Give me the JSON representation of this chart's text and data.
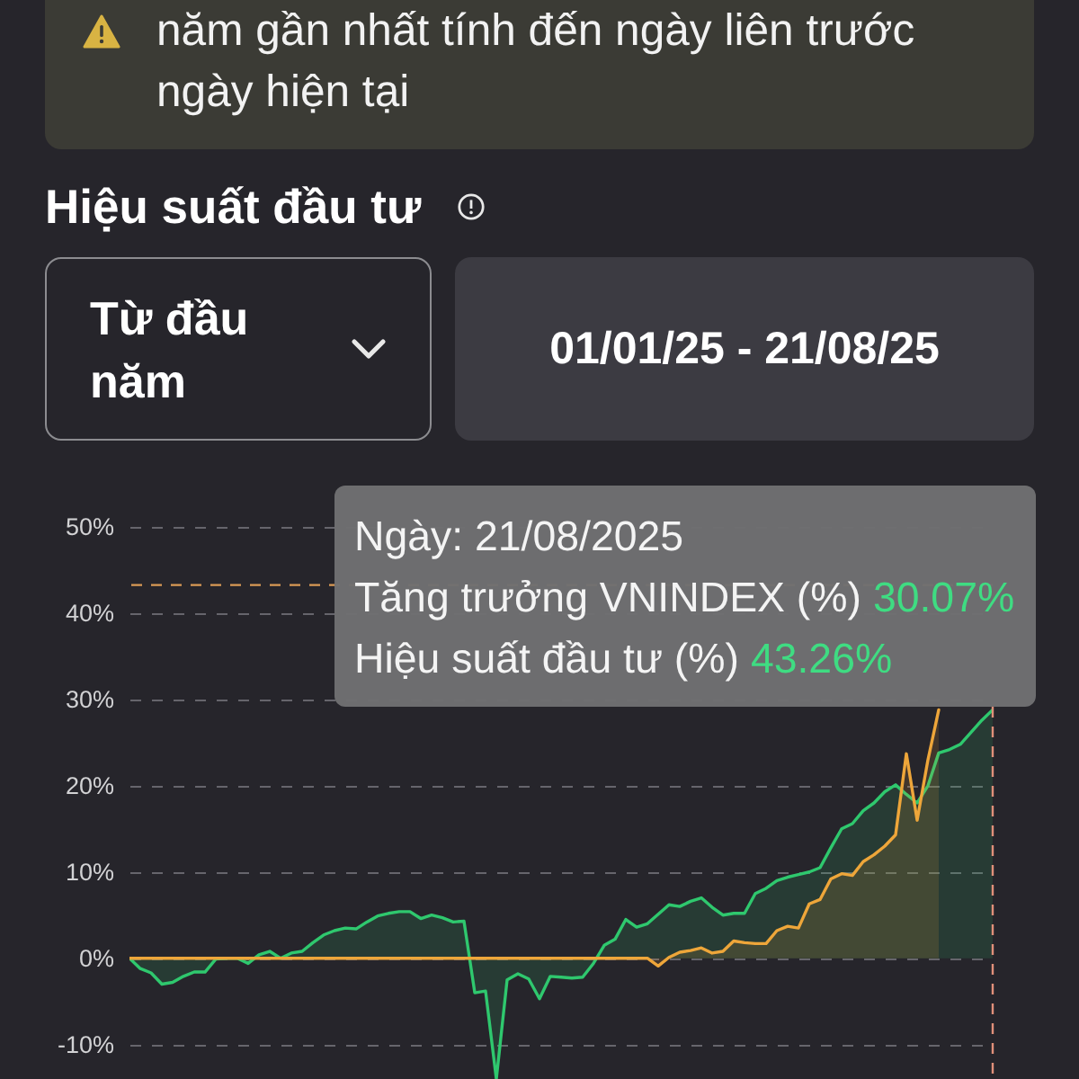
{
  "chart_data": {
    "type": "area",
    "title": "Hiệu suất đầu tư",
    "annotations": [
      "năm gần nhất tính đến ngày liên trước ngày hiện tại",
      "Từ đầu năm",
      "01/01/25 - 21/08/25",
      "Ngày: 21/08/2025",
      "Tăng trưởng VNINDEX (%) 30.07%",
      "Hiệu suất đầu tư (%) 43.26%"
    ],
    "categories": [
      null,
      null,
      null,
      null,
      null,
      null,
      null,
      null,
      null,
      null,
      null,
      null,
      null,
      null,
      null,
      null,
      null,
      null,
      null,
      null,
      null,
      null,
      null,
      null,
      null,
      null,
      null,
      null,
      null,
      null,
      null,
      null,
      null,
      null,
      null,
      null,
      null,
      null,
      null,
      null,
      null,
      null,
      null,
      null,
      null,
      null,
      null,
      null,
      null,
      null,
      null,
      null,
      null,
      null,
      null,
      null,
      null,
      null,
      null,
      null,
      null,
      null,
      null,
      null,
      null,
      null,
      null,
      null,
      null,
      null,
      null,
      null,
      null,
      null,
      null,
      null,
      null,
      null,
      null,
      null,
      null
    ],
    "series": [
      {
        "color": "#2fc86e",
        "values": [
          0,
          -1.2,
          -1.7,
          -3.0,
          -2.8,
          -2.1,
          -1.6,
          -1.6,
          -0.1,
          0,
          0,
          -0.6,
          0.4,
          0.8,
          0,
          0.6,
          0.8,
          1.8,
          2.7,
          3.2,
          3.5,
          3.4,
          4.2,
          4.9,
          5.2,
          5.4,
          5.4,
          4.6,
          5.0,
          4.7,
          4.2,
          4.3,
          -4.0,
          -3.8,
          -14,
          -2.5,
          -1.8,
          -2.4,
          -4.7,
          -2.1,
          -2.2,
          -2.3,
          -2.2,
          -0.6,
          1.5,
          2.2,
          4.5,
          3.6,
          4.0,
          5.1,
          6.2,
          6.0,
          6.6,
          7.0,
          5.9,
          5.0,
          5.2,
          5.2,
          7.5,
          8.1,
          9.0,
          9.4,
          9.7,
          10.0,
          10.5,
          12.8,
          15.0,
          15.6,
          17.1,
          18.0,
          19.3,
          20.1,
          19.0,
          18.0,
          20.0,
          23.8,
          24.2,
          24.8,
          26.2,
          27.6,
          28.8
        ]
      },
      {
        "color": "#eea63a",
        "values": [
          0,
          0,
          0,
          0,
          0,
          0,
          0,
          0,
          0,
          0,
          0,
          0,
          0,
          0,
          0,
          0,
          0,
          0,
          0,
          0,
          0,
          0,
          0,
          0,
          0,
          0,
          0,
          0,
          0,
          0,
          0,
          0,
          0,
          0,
          0,
          0,
          0,
          0,
          0,
          0,
          0,
          0,
          0,
          0,
          0,
          0,
          0,
          0,
          0,
          -0.9,
          0.1,
          0.7,
          0.9,
          1.2,
          0.6,
          0.8,
          2.0,
          1.8,
          1.7,
          1.7,
          3.2,
          3.7,
          3.5,
          6.3,
          6.8,
          9.2,
          9.8,
          9.6,
          11.2,
          12.0,
          13.0,
          14.3,
          23.7,
          16.0,
          23.0,
          28.8,
          null,
          null,
          null,
          null,
          null
        ]
      }
    ],
    "ylim": [
      -14,
      50
    ],
    "yticks": [
      {
        "value": -10,
        "label": "-10%"
      },
      {
        "value": 0,
        "label": "0%"
      },
      {
        "value": 10,
        "label": "10%"
      },
      {
        "value": 20,
        "label": "20%"
      },
      {
        "value": 30,
        "label": "30%"
      },
      {
        "value": 40,
        "label": "40%"
      },
      {
        "value": 50,
        "label": "50%"
      }
    ],
    "grid": "y",
    "tick_labels": "y",
    "ref_lines": [
      {
        "axis": "y",
        "value": 43.26,
        "color": "#d99a55",
        "line_style": "dashed"
      }
    ]
  }
}
